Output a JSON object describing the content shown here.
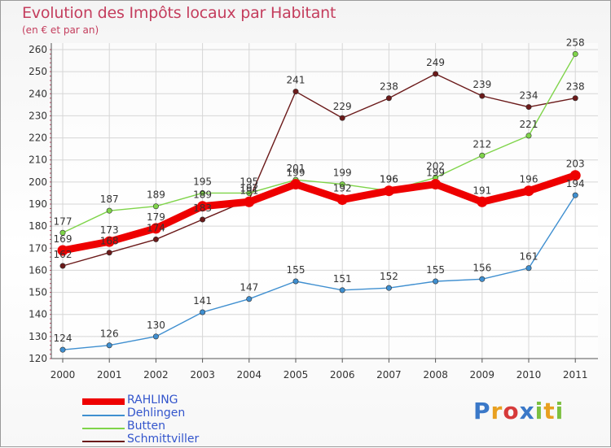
{
  "title": "Evolution des Impôts locaux par Habitant",
  "subtitle": "(en € et par an)",
  "chart_data": {
    "type": "line",
    "title": "Evolution des Impôts locaux par Habitant",
    "subtitle": "(en € et par an)",
    "xlabel": "",
    "ylabel": "",
    "categories": [
      "2000",
      "2001",
      "2002",
      "2003",
      "2004",
      "2005",
      "2006",
      "2007",
      "2008",
      "2009",
      "2010",
      "2011"
    ],
    "ylim": [
      120,
      260
    ],
    "yticks": [
      120,
      130,
      140,
      150,
      160,
      170,
      180,
      190,
      200,
      210,
      220,
      230,
      240,
      250,
      260
    ],
    "grid": true,
    "legend_position": "bottom-left",
    "series": [
      {
        "name": "Schmittviller",
        "color": "#6b1a1a",
        "values": [
          162,
          168,
          174,
          183,
          192,
          241,
          229,
          238,
          249,
          239,
          234,
          238
        ],
        "labels": [
          "162",
          "168",
          "174",
          "183",
          "192",
          "241",
          "229",
          "238",
          "249",
          "239",
          "234",
          "238"
        ]
      },
      {
        "name": "Butten",
        "color": "#7fd44a",
        "values": [
          177,
          187,
          189,
          195,
          195,
          201,
          199,
          196,
          202,
          212,
          221,
          258
        ],
        "labels": [
          "177",
          "187",
          "189",
          "195",
          "195",
          "201",
          "199",
          "196",
          "202",
          "212",
          "221",
          "258"
        ]
      },
      {
        "name": "Dehlingen",
        "color": "#3f8fd0",
        "values": [
          124,
          126,
          130,
          141,
          147,
          155,
          151,
          152,
          155,
          156,
          161,
          194
        ],
        "labels": [
          "124",
          "126",
          "130",
          "141",
          "147",
          "155",
          "151",
          "152",
          "155",
          "156",
          "161",
          "194"
        ]
      },
      {
        "name": "RAHLING",
        "color": "#ee0000",
        "values": [
          169,
          173,
          179,
          189,
          191,
          199,
          192,
          196,
          199,
          191,
          196,
          203
        ],
        "labels": [
          "169",
          "173",
          "179",
          "189",
          "191",
          "199",
          "192",
          "196",
          "199",
          "191",
          "196",
          "203"
        ]
      }
    ]
  },
  "legend": [
    {
      "name": "RAHLING",
      "color": "#ee0000"
    },
    {
      "name": "Dehlingen",
      "color": "#3f8fd0"
    },
    {
      "name": "Butten",
      "color": "#7fd44a"
    },
    {
      "name": "Schmittviller",
      "color": "#6b1a1a"
    }
  ],
  "logo": {
    "text": "Proxiti",
    "letters": [
      "P",
      "r",
      "o",
      "x",
      "i",
      "t",
      "i"
    ],
    "colors": [
      "#3a78c8",
      "#e8a020",
      "#d63a3a",
      "#3a78c8",
      "#7cc040",
      "#e8a020",
      "#7cc040"
    ]
  }
}
